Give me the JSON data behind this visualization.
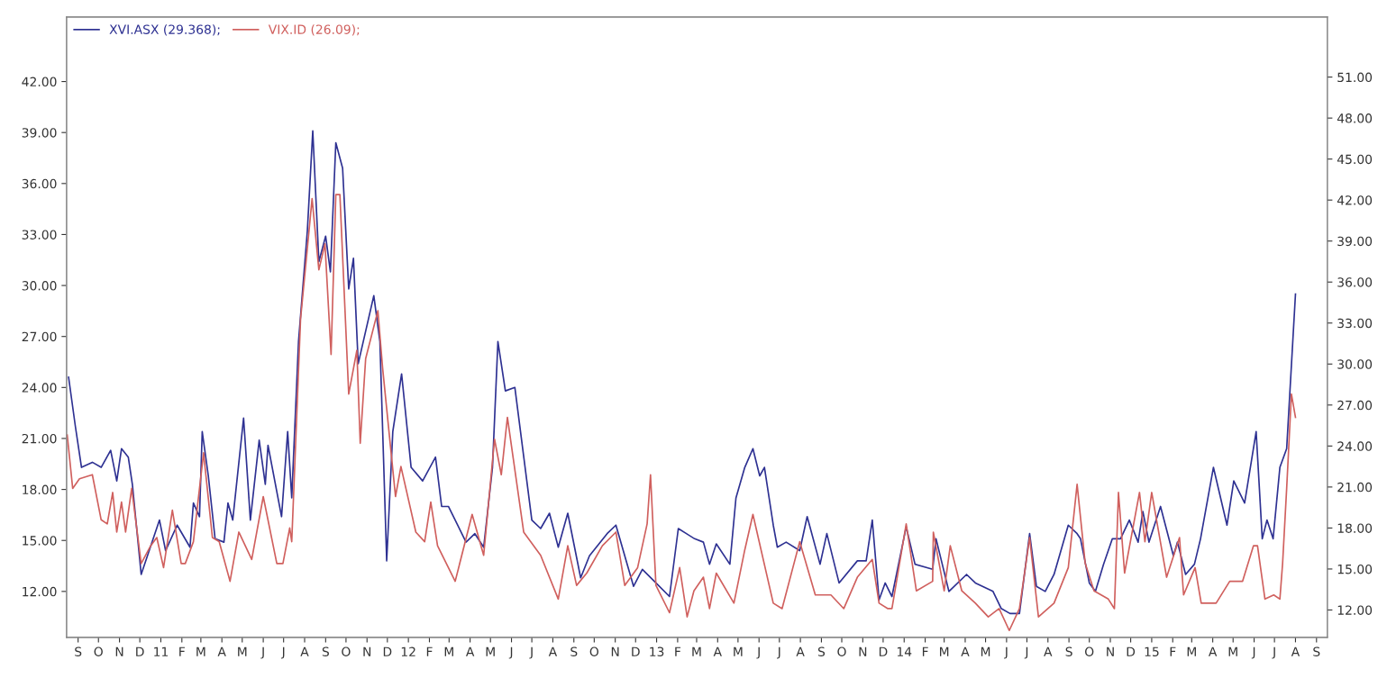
{
  "chart_data": {
    "type": "line",
    "xlim": [
      "2010-08-30",
      "2015-10-02"
    ],
    "xticks": [
      {
        "value": "2010-09-16",
        "label": "S"
      },
      {
        "value": "2010-10-16",
        "label": "O"
      },
      {
        "value": "2010-11-16",
        "label": "N"
      },
      {
        "value": "2010-12-16",
        "label": "D"
      },
      {
        "value": "2011-01-16",
        "label": "11"
      },
      {
        "value": "2011-02-16",
        "label": "F"
      },
      {
        "value": "2011-03-16",
        "label": "M"
      },
      {
        "value": "2011-04-16",
        "label": "A"
      },
      {
        "value": "2011-05-16",
        "label": "M"
      },
      {
        "value": "2011-06-16",
        "label": "J"
      },
      {
        "value": "2011-07-16",
        "label": "J"
      },
      {
        "value": "2011-08-16",
        "label": "A"
      },
      {
        "value": "2011-09-16",
        "label": "S"
      },
      {
        "value": "2011-10-16",
        "label": "O"
      },
      {
        "value": "2011-11-16",
        "label": "N"
      },
      {
        "value": "2011-12-16",
        "label": "D"
      },
      {
        "value": "2012-01-16",
        "label": "12"
      },
      {
        "value": "2012-02-16",
        "label": "F"
      },
      {
        "value": "2012-03-16",
        "label": "M"
      },
      {
        "value": "2012-04-16",
        "label": "A"
      },
      {
        "value": "2012-05-16",
        "label": "M"
      },
      {
        "value": "2012-06-16",
        "label": "J"
      },
      {
        "value": "2012-07-16",
        "label": "J"
      },
      {
        "value": "2012-08-16",
        "label": "A"
      },
      {
        "value": "2012-09-16",
        "label": "S"
      },
      {
        "value": "2012-10-16",
        "label": "O"
      },
      {
        "value": "2012-11-16",
        "label": "N"
      },
      {
        "value": "2012-12-16",
        "label": "D"
      },
      {
        "value": "2013-01-16",
        "label": "13"
      },
      {
        "value": "2013-02-16",
        "label": "F"
      },
      {
        "value": "2013-03-16",
        "label": "M"
      },
      {
        "value": "2013-04-16",
        "label": "A"
      },
      {
        "value": "2013-05-16",
        "label": "M"
      },
      {
        "value": "2013-06-16",
        "label": "J"
      },
      {
        "value": "2013-07-16",
        "label": "J"
      },
      {
        "value": "2013-08-16",
        "label": "A"
      },
      {
        "value": "2013-09-16",
        "label": "S"
      },
      {
        "value": "2013-10-16",
        "label": "O"
      },
      {
        "value": "2013-11-16",
        "label": "N"
      },
      {
        "value": "2013-12-16",
        "label": "D"
      },
      {
        "value": "2014-01-16",
        "label": "14"
      },
      {
        "value": "2014-02-16",
        "label": "F"
      },
      {
        "value": "2014-03-16",
        "label": "M"
      },
      {
        "value": "2014-04-16",
        "label": "A"
      },
      {
        "value": "2014-05-16",
        "label": "M"
      },
      {
        "value": "2014-06-16",
        "label": "J"
      },
      {
        "value": "2014-07-16",
        "label": "J"
      },
      {
        "value": "2014-08-16",
        "label": "A"
      },
      {
        "value": "2014-09-16",
        "label": "S"
      },
      {
        "value": "2014-10-16",
        "label": "O"
      },
      {
        "value": "2014-11-16",
        "label": "N"
      },
      {
        "value": "2014-12-16",
        "label": "D"
      },
      {
        "value": "2015-01-16",
        "label": "15"
      },
      {
        "value": "2015-02-16",
        "label": "F"
      },
      {
        "value": "2015-03-16",
        "label": "M"
      },
      {
        "value": "2015-04-16",
        "label": "A"
      },
      {
        "value": "2015-05-16",
        "label": "M"
      },
      {
        "value": "2015-06-16",
        "label": "J"
      },
      {
        "value": "2015-07-16",
        "label": "J"
      },
      {
        "value": "2015-08-16",
        "label": "A"
      },
      {
        "value": "2015-09-16",
        "label": "S"
      }
    ],
    "ylim": [
      9.3,
      45.8
    ],
    "yticks": [
      {
        "value": 12,
        "label": "12.00"
      },
      {
        "value": 15,
        "label": "15.00"
      },
      {
        "value": 18,
        "label": "18.00"
      },
      {
        "value": 21,
        "label": "21.00"
      },
      {
        "value": 24,
        "label": "24.00"
      },
      {
        "value": 27,
        "label": "27.00"
      },
      {
        "value": 30,
        "label": "30.00"
      },
      {
        "value": 33,
        "label": "33.00"
      },
      {
        "value": 36,
        "label": "36.00"
      },
      {
        "value": 39,
        "label": "39.00"
      },
      {
        "value": 42,
        "label": "42.00"
      }
    ],
    "y2lim": [
      10.0,
      55.4
    ],
    "y2ticks": [
      {
        "value": 12,
        "label": "12.00"
      },
      {
        "value": 15,
        "label": "15.00"
      },
      {
        "value": 18,
        "label": "18.00"
      },
      {
        "value": 21,
        "label": "21.00"
      },
      {
        "value": 24,
        "label": "24.00"
      },
      {
        "value": 27,
        "label": "27.00"
      },
      {
        "value": 30,
        "label": "30.00"
      },
      {
        "value": 33,
        "label": "33.00"
      },
      {
        "value": 36,
        "label": "36.00"
      },
      {
        "value": 39,
        "label": "39.00"
      },
      {
        "value": 42,
        "label": "42.00"
      },
      {
        "value": 45,
        "label": "45.00"
      },
      {
        "value": 48,
        "label": "48.00"
      },
      {
        "value": 51,
        "label": "51.00"
      }
    ],
    "legend": "top left",
    "series": [
      {
        "name": "XVI.ASX (29.368);",
        "color": "#2e3192",
        "axis": "y",
        "x": [
          "2010-09-02",
          "2010-09-12",
          "2010-09-21",
          "2010-10-07",
          "2010-10-20",
          "2010-11-03",
          "2010-11-12",
          "2010-11-19",
          "2010-11-29",
          "2010-12-05",
          "2010-12-18",
          "2011-01-14",
          "2011-01-23",
          "2011-02-09",
          "2011-02-28",
          "2011-03-05",
          "2011-03-14",
          "2011-03-18",
          "2011-03-27",
          "2011-04-06",
          "2011-04-19",
          "2011-04-25",
          "2011-05-02",
          "2011-05-18",
          "2011-05-28",
          "2011-06-10",
          "2011-06-19",
          "2011-06-23",
          "2011-07-13",
          "2011-07-22",
          "2011-07-28",
          "2011-08-07",
          "2011-08-20",
          "2011-08-28",
          "2011-09-06",
          "2011-09-16",
          "2011-09-23",
          "2011-10-01",
          "2011-10-11",
          "2011-10-20",
          "2011-10-27",
          "2011-11-03",
          "2011-11-26",
          "2011-12-05",
          "2011-12-15",
          "2011-12-24",
          "2012-01-06",
          "2012-01-20",
          "2012-02-06",
          "2012-02-25",
          "2012-03-05",
          "2012-03-15",
          "2012-04-10",
          "2012-04-23",
          "2012-05-06",
          "2012-05-19",
          "2012-05-27",
          "2012-06-07",
          "2012-06-21",
          "2012-07-16",
          "2012-07-29",
          "2012-08-11",
          "2012-08-24",
          "2012-09-07",
          "2012-09-26",
          "2012-10-09",
          "2012-11-04",
          "2012-11-17",
          "2012-12-13",
          "2012-12-26",
          "2013-01-15",
          "2013-02-04",
          "2013-02-17",
          "2013-03-13",
          "2013-03-26",
          "2013-04-04",
          "2013-04-14",
          "2013-05-04",
          "2013-05-13",
          "2013-05-26",
          "2013-06-07",
          "2013-06-17",
          "2013-06-24",
          "2013-07-07",
          "2013-07-13",
          "2013-07-26",
          "2013-08-15",
          "2013-08-26",
          "2013-09-14",
          "2013-09-24",
          "2013-10-12",
          "2013-11-08",
          "2013-11-21",
          "2013-11-30",
          "2013-12-10",
          "2013-12-19",
          "2013-12-29",
          "2014-01-19",
          "2014-02-01",
          "2014-02-27",
          "2014-03-04",
          "2014-03-23",
          "2014-04-18",
          "2014-05-01",
          "2014-05-27",
          "2014-06-08",
          "2014-06-21",
          "2014-07-05",
          "2014-07-20",
          "2014-07-30",
          "2014-08-12",
          "2014-08-25",
          "2014-09-15",
          "2014-09-28",
          "2014-10-03",
          "2014-10-16",
          "2014-10-25",
          "2014-11-06",
          "2014-11-19",
          "2014-12-01",
          "2014-12-14",
          "2014-12-27",
          "2015-01-03",
          "2015-01-12",
          "2015-01-29",
          "2015-02-17",
          "2015-02-23",
          "2015-03-07",
          "2015-03-20",
          "2015-03-29",
          "2015-04-17",
          "2015-05-07",
          "2015-05-17",
          "2015-06-02",
          "2015-06-19",
          "2015-06-28",
          "2015-07-05",
          "2015-07-14",
          "2015-07-24",
          "2015-08-03",
          "2015-08-12",
          "2015-08-16"
        ],
        "values": [
          24.6,
          21.7,
          19.3,
          19.6,
          19.3,
          20.3,
          18.5,
          20.4,
          19.9,
          18.3,
          13.0,
          16.2,
          14.4,
          15.9,
          14.6,
          17.2,
          16.4,
          21.4,
          18.8,
          15.1,
          14.9,
          17.2,
          16.2,
          22.2,
          16.2,
          20.9,
          18.3,
          20.6,
          16.4,
          21.4,
          17.5,
          26.7,
          33.2,
          39.1,
          31.4,
          32.9,
          30.8,
          38.4,
          36.9,
          29.8,
          31.6,
          25.4,
          29.4,
          26.7,
          13.8,
          21.4,
          24.8,
          19.3,
          18.5,
          19.9,
          17.0,
          17.0,
          14.9,
          15.4,
          14.6,
          19.3,
          26.7,
          23.8,
          24.0,
          16.2,
          15.7,
          16.6,
          14.6,
          16.6,
          12.8,
          14.1,
          15.4,
          15.9,
          12.3,
          13.3,
          12.5,
          11.7,
          15.7,
          15.1,
          14.9,
          13.6,
          14.8,
          13.6,
          17.5,
          19.3,
          20.4,
          18.8,
          19.3,
          15.9,
          14.6,
          14.9,
          14.4,
          16.4,
          13.6,
          15.4,
          12.5,
          13.8,
          13.8,
          16.2,
          11.5,
          12.5,
          11.7,
          15.8,
          13.6,
          13.3,
          15.1,
          12.0,
          13.0,
          12.5,
          12.0,
          11.0,
          10.7,
          10.7,
          15.4,
          12.3,
          12.0,
          13.0,
          15.9,
          15.4,
          15.1,
          12.5,
          12.0,
          13.6,
          15.1,
          15.1,
          16.2,
          14.9,
          16.7,
          14.9,
          17.0,
          14.1,
          14.9,
          13.0,
          13.6,
          15.1,
          19.3,
          15.9,
          18.5,
          17.2,
          21.4,
          15.1,
          16.2,
          15.1,
          19.3,
          20.4,
          26.7,
          29.5
        ]
      },
      {
        "name": "VIX.ID (26.09);",
        "color": "#d0605e",
        "axis": "y2",
        "x": [
          "2010-08-31",
          "2010-09-08",
          "2010-09-18",
          "2010-10-07",
          "2010-10-20",
          "2010-10-29",
          "2010-11-06",
          "2010-11-12",
          "2010-11-19",
          "2010-11-25",
          "2010-12-04",
          "2010-12-18",
          "2011-01-01",
          "2011-01-10",
          "2011-01-20",
          "2011-02-02",
          "2011-02-15",
          "2011-02-21",
          "2011-03-05",
          "2011-03-20",
          "2011-04-02",
          "2011-04-12",
          "2011-04-28",
          "2011-05-11",
          "2011-05-30",
          "2011-06-16",
          "2011-07-06",
          "2011-07-15",
          "2011-07-25",
          "2011-07-28",
          "2011-08-10",
          "2011-08-27",
          "2011-09-06",
          "2011-09-15",
          "2011-09-24",
          "2011-10-01",
          "2011-10-07",
          "2011-10-20",
          "2011-11-01",
          "2011-11-06",
          "2011-11-14",
          "2011-12-02",
          "2011-12-09",
          "2011-12-28",
          "2012-01-05",
          "2012-01-27",
          "2012-02-09",
          "2012-02-18",
          "2012-02-28",
          "2012-03-25",
          "2012-04-19",
          "2012-05-06",
          "2012-05-22",
          "2012-06-01",
          "2012-06-10",
          "2012-07-04",
          "2012-07-29",
          "2012-08-24",
          "2012-09-07",
          "2012-09-20",
          "2012-10-05",
          "2012-10-28",
          "2012-11-17",
          "2012-11-30",
          "2012-12-19",
          "2013-01-02",
          "2013-01-07",
          "2013-01-15",
          "2013-02-04",
          "2013-02-19",
          "2013-03-02",
          "2013-03-12",
          "2013-03-26",
          "2013-04-04",
          "2013-04-14",
          "2013-05-10",
          "2013-05-26",
          "2013-06-07",
          "2013-07-07",
          "2013-07-20",
          "2013-08-15",
          "2013-09-07",
          "2013-09-30",
          "2013-10-19",
          "2013-11-08",
          "2013-11-30",
          "2013-12-10",
          "2013-12-23",
          "2013-12-29",
          "2014-01-19",
          "2014-02-03",
          "2014-02-27",
          "2014-02-28",
          "2014-03-16",
          "2014-03-25",
          "2014-04-11",
          "2014-05-01",
          "2014-05-20",
          "2014-06-05",
          "2014-06-20",
          "2014-07-05",
          "2014-07-20",
          "2014-08-02",
          "2014-08-25",
          "2014-09-15",
          "2014-09-28",
          "2014-10-10",
          "2014-10-23",
          "2014-11-13",
          "2014-11-22",
          "2014-11-28",
          "2014-12-07",
          "2014-12-29",
          "2015-01-06",
          "2015-01-16",
          "2015-02-07",
          "2015-02-26",
          "2015-03-04",
          "2015-03-21",
          "2015-03-30",
          "2015-04-21",
          "2015-05-11",
          "2015-05-30",
          "2015-06-15",
          "2015-06-21",
          "2015-07-02",
          "2015-07-15",
          "2015-07-24",
          "2015-07-28",
          "2015-08-03",
          "2015-08-10",
          "2015-08-16"
        ],
        "values": [
          24.8,
          20.9,
          21.6,
          21.9,
          18.6,
          18.3,
          20.6,
          17.7,
          19.9,
          17.7,
          20.9,
          15.4,
          16.7,
          17.3,
          15.1,
          19.3,
          15.4,
          15.4,
          17.0,
          23.5,
          17.3,
          17.0,
          14.1,
          17.7,
          15.7,
          20.3,
          15.4,
          15.4,
          18.0,
          17.0,
          33.3,
          42.1,
          36.9,
          38.8,
          30.7,
          42.4,
          42.4,
          27.8,
          31.0,
          24.2,
          30.4,
          33.9,
          29.7,
          20.3,
          22.5,
          17.7,
          17.0,
          19.9,
          16.7,
          14.1,
          19.0,
          16.0,
          24.5,
          21.9,
          26.1,
          17.7,
          16.0,
          12.8,
          16.7,
          13.8,
          14.7,
          16.7,
          17.7,
          13.8,
          15.1,
          18.3,
          21.9,
          13.8,
          11.8,
          15.1,
          11.5,
          13.4,
          14.4,
          12.1,
          14.7,
          12.5,
          16.4,
          19.0,
          12.5,
          12.1,
          17.0,
          13.1,
          13.1,
          12.1,
          14.4,
          15.7,
          12.5,
          12.1,
          12.1,
          18.3,
          13.4,
          14.1,
          17.7,
          13.4,
          16.7,
          13.4,
          12.5,
          11.5,
          12.1,
          10.5,
          12.1,
          17.3,
          11.5,
          12.5,
          15.1,
          21.2,
          15.4,
          13.4,
          12.8,
          12.1,
          20.6,
          14.7,
          20.6,
          17.0,
          20.6,
          14.4,
          17.3,
          13.1,
          15.1,
          12.5,
          12.5,
          14.1,
          14.1,
          16.7,
          16.7,
          12.8,
          13.1,
          12.8,
          15.4,
          20.9,
          27.8,
          26.1
        ]
      }
    ]
  }
}
